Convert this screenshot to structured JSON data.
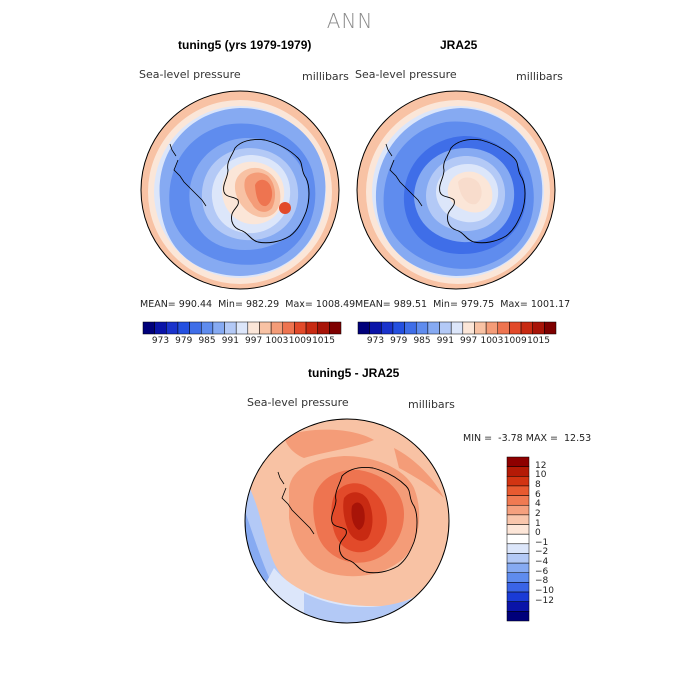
{
  "figure": {
    "title": "ANN"
  },
  "panels": [
    {
      "id": "model",
      "title": "tuning5 (yrs 1979-1979)",
      "left_label": "Sea-level pressure",
      "right_label": "millibars",
      "stats": {
        "mean_label": "MEAN=",
        "mean": "990.44",
        "min_label": "Min=",
        "min": "982.29",
        "max_label": "Max=",
        "max": "1008.49"
      }
    },
    {
      "id": "obs",
      "title": "JRA25",
      "left_label": "Sea-level pressure",
      "right_label": "millibars",
      "stats": {
        "mean_label": "MEAN=",
        "mean": "989.51",
        "min_label": "Min=",
        "min": "979.75",
        "max_label": "Max=",
        "max": "1001.17"
      }
    },
    {
      "id": "diff",
      "title": "tuning5 - JRA25",
      "left_label": "Sea-level pressure",
      "right_label": "millibars",
      "stats": {
        "min_label": "MIN =",
        "min": "-3.78",
        "max_label": "MAX =",
        "max": "12.53"
      }
    }
  ],
  "colorbar_abs": {
    "labels": [
      "973",
      "979",
      "985",
      "991",
      "997",
      "1003",
      "1009",
      "1015"
    ],
    "colors": [
      "#00007a",
      "#0a14a8",
      "#1a33cc",
      "#2450e0",
      "#3f6ee8",
      "#5f8cee",
      "#86aaf2",
      "#b3c9f6",
      "#dce6fa",
      "#fbe6d8",
      "#f8c2a4",
      "#f49c78",
      "#ee7450",
      "#e24a2a",
      "#c82a12",
      "#a81408",
      "#7e0000"
    ]
  },
  "colorbar_diff": {
    "labels": [
      "12",
      "10",
      "8",
      "6",
      "4",
      "2",
      "1",
      "0",
      "−1",
      "−2",
      "−4",
      "−6",
      "−8",
      "−10",
      "−12"
    ],
    "colors": [
      "#8e0000",
      "#b41a06",
      "#d23412",
      "#e85a30",
      "#f07a52",
      "#f5a07e",
      "#f9c6ac",
      "#fde6d8",
      "#ffffff",
      "#dce6fa",
      "#b3c9f6",
      "#86aaf2",
      "#5f8cee",
      "#3a64e6",
      "#1a3bd6",
      "#0a14a8",
      "#00007a"
    ]
  },
  "maps": {
    "colors": {
      "outer_ring": "#f8c2a4",
      "outer_ring2": "#fbe6d8",
      "ocean_low": "#5f8cee",
      "ocean_mid": "#86aaf2",
      "ocean_light": "#b3c9f6",
      "ice_edge": "#dce6fa",
      "high1": "#f8c2a4",
      "high2": "#ee7450",
      "high3": "#e24a2a",
      "coast": "#000000"
    }
  }
}
